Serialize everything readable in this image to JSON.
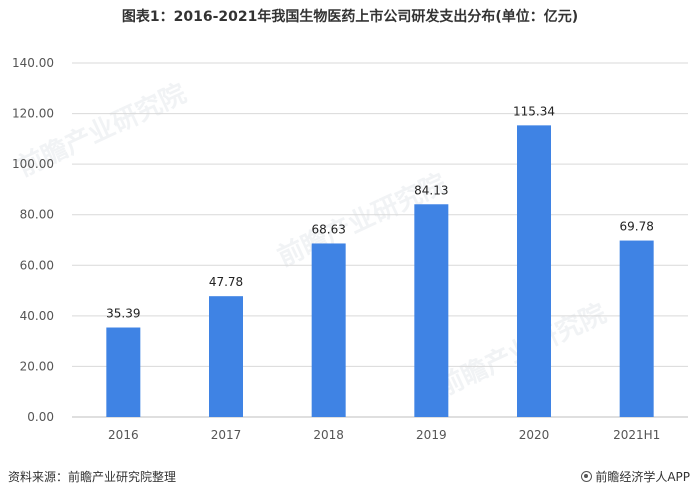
{
  "title": "图表1：2016-2021年我国生物医药上市公司研发支出分布(单位：亿元)",
  "source": "资料来源：前瞻产业研究院整理",
  "brand": "前瞻经济学人APP",
  "watermark": "前瞻产业研究院",
  "colors": {
    "bar": "#3f83e4",
    "grid": "#d9d9d9",
    "axis": "#bfbfbf"
  },
  "chart_data": {
    "type": "bar",
    "categories": [
      "2016",
      "2017",
      "2018",
      "2019",
      "2020",
      "2021H1"
    ],
    "values": [
      35.39,
      47.78,
      68.63,
      84.13,
      115.34,
      69.78
    ],
    "value_labels": [
      "35.39",
      "47.78",
      "68.63",
      "84.13",
      "115.34",
      "69.78"
    ],
    "yticks": [
      "0.00",
      "20.00",
      "40.00",
      "60.00",
      "80.00",
      "100.00",
      "120.00",
      "140.00"
    ],
    "ylim": [
      0,
      140
    ],
    "ytick_step": 20,
    "grid": true,
    "legend": "none"
  }
}
